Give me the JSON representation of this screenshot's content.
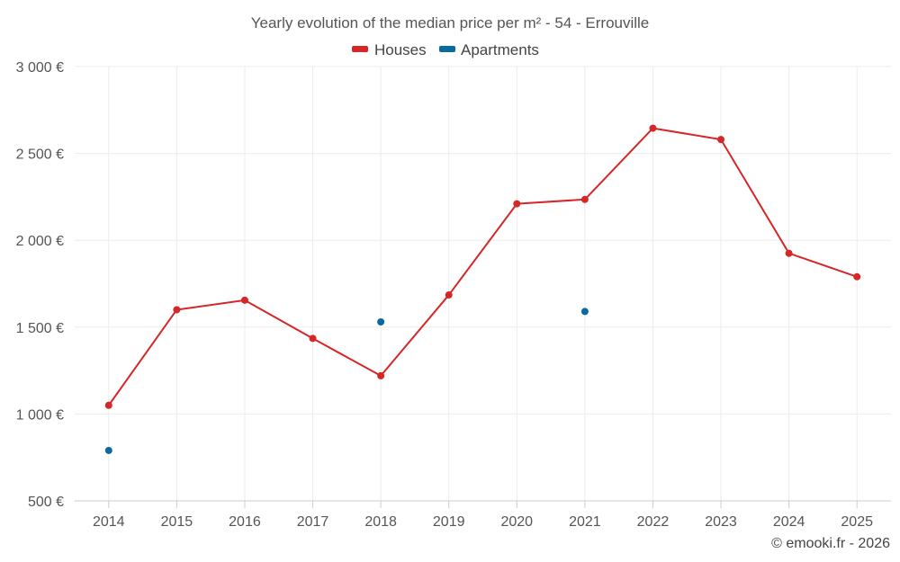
{
  "chart_data": {
    "type": "line",
    "title": "Yearly evolution of the median price per m² - 54 - Errouville",
    "x": [
      "2014",
      "2015",
      "2016",
      "2017",
      "2018",
      "2019",
      "2020",
      "2021",
      "2022",
      "2023",
      "2024",
      "2025"
    ],
    "ylim": [
      500,
      3000
    ],
    "yticks": [
      500,
      1000,
      1500,
      2000,
      2500,
      3000
    ],
    "ytick_labels": [
      "500 €",
      "1 000 €",
      "1 500 €",
      "2 000 €",
      "2 500 €",
      "3 000 €"
    ],
    "xlabel": "",
    "ylabel": "",
    "grid": true,
    "legend_position": "top-center",
    "series": [
      {
        "name": "Houses",
        "color": "#d62728",
        "line": true,
        "values": [
          1050,
          1600,
          1655,
          1435,
          1220,
          1685,
          2210,
          2235,
          2645,
          2580,
          1925,
          1790
        ]
      },
      {
        "name": "Apartments",
        "color": "#0b6a9c",
        "line": false,
        "values": [
          790,
          null,
          null,
          null,
          1530,
          null,
          null,
          1590,
          null,
          null,
          null,
          null
        ]
      }
    ]
  },
  "credit": "© emooki.fr - 2026"
}
